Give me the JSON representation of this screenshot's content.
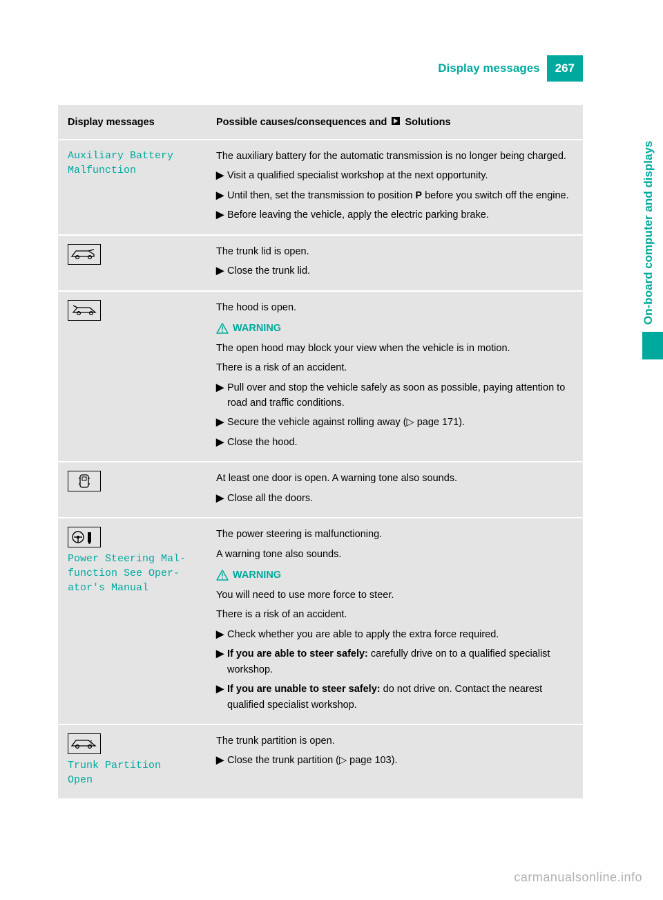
{
  "colors": {
    "accent": "#00a99d",
    "tableBg": "#e4e4e4",
    "rowDivider": "#ffffff",
    "text": "#000000",
    "footer": "#b0b0b0"
  },
  "header": {
    "title": "Display messages",
    "pageNumber": "267"
  },
  "sideTab": {
    "label": "On-board computer and displays"
  },
  "table": {
    "headers": {
      "left": "Display messages",
      "rightPrefix": "Possible causes/consequences and ",
      "rightSuffix": " Solutions"
    },
    "rows": [
      {
        "id": "aux-battery",
        "displayLines": [
          "Auxiliary Battery",
          "Malfunction"
        ],
        "intro": "The auxiliary battery for the automatic transmission is no longer being charged.",
        "bullets": [
          {
            "text": "Visit a qualified specialist workshop at the next opportunity."
          },
          {
            "prefix": "Until then, set the transmission to position ",
            "bold": "P",
            "suffix": " before you switch off the engine."
          },
          {
            "text": "Before leaving the vehicle, apply the electric parking brake."
          }
        ]
      },
      {
        "id": "trunk-lid",
        "icon": "car-trunk",
        "intro": "The trunk lid is open.",
        "bullets": [
          {
            "text": "Close the trunk lid."
          }
        ]
      },
      {
        "id": "hood",
        "icon": "car-hood",
        "intro": "The hood is open.",
        "warning": true,
        "warningLabel": "WARNING",
        "paras": [
          "The open hood may block your view when the vehicle is in motion.",
          "There is a risk of an accident."
        ],
        "bullets": [
          {
            "text": "Pull over and stop the vehicle safely as soon as possible, paying attention to road and traffic conditions."
          },
          {
            "text": "Secure the vehicle against rolling away (▷ page 171)."
          },
          {
            "text": "Close the hood."
          }
        ]
      },
      {
        "id": "door",
        "icon": "car-door",
        "intro": "At least one door is open. A warning tone also sounds.",
        "bullets": [
          {
            "text": "Close all the doors."
          }
        ]
      },
      {
        "id": "power-steering",
        "icon": "steering",
        "displayLines": [
          "Power Steering Mal‐",
          "function See Oper‐",
          "ator's Manual"
        ],
        "intro": "The power steering is malfunctioning.",
        "paras0": [
          "A warning tone also sounds."
        ],
        "warning": true,
        "warningLabel": "WARNING",
        "paras": [
          "You will need to use more force to steer.",
          "There is a risk of an accident."
        ],
        "bullets": [
          {
            "text": "Check whether you are able to apply the extra force required."
          },
          {
            "boldPrefix": "If you are able to steer safely:",
            "suffix": " carefully drive on to a qualified specialist workshop."
          },
          {
            "boldPrefix": "If you are unable to steer safely:",
            "suffix": " do not drive on. Contact the nearest qualified specialist workshop."
          }
        ]
      },
      {
        "id": "trunk-partition",
        "icon": "car-partition",
        "displayLines": [
          "Trunk Partition",
          "Open"
        ],
        "intro": "The trunk partition is open.",
        "bullets": [
          {
            "text": "Close the trunk partition (▷ page 103)."
          }
        ]
      }
    ]
  },
  "footer": {
    "link": "carmanualsonline.info"
  }
}
